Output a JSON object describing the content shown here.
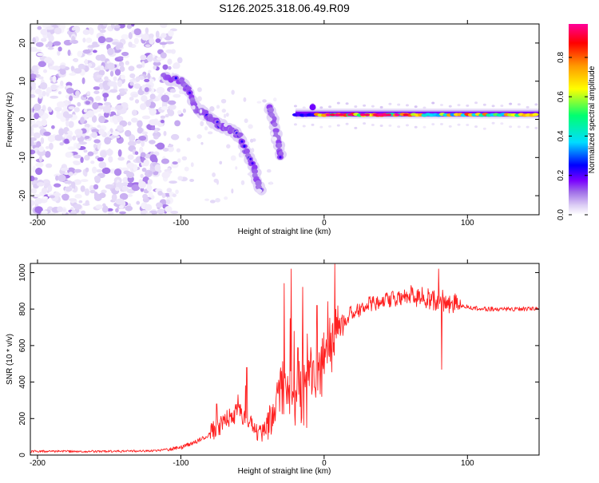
{
  "title": "S126.2025.318.06.49.R09",
  "chart_data": [
    {
      "type": "heatmap",
      "title": "S126.2025.318.06.49.R09",
      "xlabel": "Height of straight line (km)",
      "ylabel": "Frequency (Hz)",
      "xlim": [
        -205,
        150
      ],
      "ylim": [
        -25,
        25
      ],
      "xticks": [
        -200,
        -100,
        0,
        100
      ],
      "yticks": [
        -20,
        -10,
        0,
        10,
        20
      ],
      "colorbar": {
        "label": "Normalized spectral amplitude",
        "range": [
          0,
          0.97
        ],
        "ticks": [
          0.0,
          0.2,
          0.4,
          0.6,
          0.8
        ],
        "tick_labels": [
          "0.0",
          "0.2",
          "0.4",
          "0.6",
          "0.8"
        ],
        "colors": [
          "#ffffff",
          "#dccdf5",
          "#a06ee8",
          "#7a00ff",
          "#0000ff",
          "#00ddff",
          "#00ff70",
          "#ffff00",
          "#ff9900",
          "#ff0000",
          "#ff0099"
        ]
      },
      "features": {
        "noise_region_x": [
          -205,
          -97
        ],
        "descending_track": [
          [
            -112,
            11
          ],
          [
            -100,
            10
          ],
          [
            -95,
            8
          ],
          [
            -90,
            3
          ],
          [
            -85,
            2
          ],
          [
            -80,
            0.5
          ],
          [
            -75,
            -1
          ],
          [
            -70,
            -2
          ],
          [
            -65,
            -3
          ],
          [
            -60,
            -4
          ],
          [
            -55,
            -8
          ],
          [
            -50,
            -12
          ],
          [
            -47,
            -16
          ],
          [
            -44,
            -19
          ]
        ],
        "secondary_track": [
          [
            -38,
            3.5
          ],
          [
            -35,
            -1
          ],
          [
            -32,
            -6
          ],
          [
            -30,
            -10
          ]
        ],
        "tone_line": {
          "x": [
            -20,
            150
          ],
          "freq_hz": 1.2,
          "peak_amplitude": 0.97
        }
      }
    },
    {
      "type": "line",
      "xlabel": "Height of straight line (km)",
      "ylabel": "SNR (10 * v/v)",
      "xlim": [
        -205,
        150
      ],
      "ylim": [
        0,
        1050
      ],
      "xticks": [
        -200,
        -100,
        0,
        100
      ],
      "yticks": [
        0,
        200,
        400,
        600,
        800,
        1000
      ],
      "series": [
        {
          "name": "SNR",
          "color": "#ff2020",
          "x": [
            -205,
            -190,
            -175,
            -160,
            -145,
            -130,
            -115,
            -100,
            -90,
            -80,
            -75,
            -70,
            -65,
            -60,
            -55,
            -50,
            -45,
            -40,
            -35,
            -32,
            -30,
            -28,
            -25,
            -22,
            -20,
            -15,
            -10,
            -5,
            0,
            5,
            10,
            15,
            20,
            25,
            30,
            40,
            50,
            60,
            70,
            80,
            90,
            100,
            110,
            120,
            130,
            140,
            150
          ],
          "values": [
            20,
            20,
            20,
            20,
            20,
            22,
            25,
            40,
            70,
            110,
            150,
            180,
            210,
            240,
            200,
            150,
            120,
            150,
            250,
            350,
            450,
            400,
            350,
            350,
            380,
            400,
            420,
            450,
            550,
            650,
            700,
            750,
            780,
            800,
            820,
            840,
            860,
            870,
            860,
            850,
            830,
            810,
            800,
            800,
            800,
            800,
            800
          ],
          "spikes": [
            [
              -75,
              280
            ],
            [
              -60,
              330
            ],
            [
              -55,
              380
            ],
            [
              -54,
              480
            ],
            [
              -28,
              940
            ],
            [
              -23,
              1020
            ],
            [
              -15,
              920
            ],
            [
              -5,
              820
            ],
            [
              80,
              1020
            ],
            [
              82,
              470
            ]
          ]
        }
      ]
    }
  ]
}
